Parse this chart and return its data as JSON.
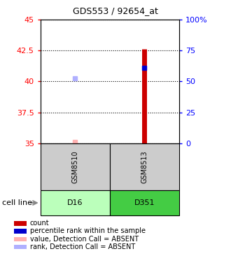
{
  "title": "GDS553 / 92654_at",
  "samples": [
    "GSM8510",
    "GSM8513"
  ],
  "cell_lines": [
    "D16",
    "D351"
  ],
  "ylim_left": [
    35,
    45
  ],
  "ylim_right": [
    0,
    100
  ],
  "yticks_left": [
    35,
    37.5,
    40,
    42.5,
    45
  ],
  "yticks_right": [
    0,
    25,
    50,
    75,
    100
  ],
  "count_color": "#cc0000",
  "rank_color": "#0000cc",
  "absent_value_color": "#ffb0b0",
  "absent_rank_color": "#b0b0ff",
  "bar_bottom": 35,
  "sample1_count": 35.1,
  "sample1_rank": 40.25,
  "sample2_count": 42.65,
  "sample2_rank": 41.1,
  "cell_line_colors": [
    "#bbffbb",
    "#44cc44"
  ],
  "sample_box_color": "#cccccc",
  "legend_items": [
    {
      "label": "count",
      "color": "#cc0000"
    },
    {
      "label": "percentile rank within the sample",
      "color": "#0000cc"
    },
    {
      "label": "value, Detection Call = ABSENT",
      "color": "#ffb0b0"
    },
    {
      "label": "rank, Detection Call = ABSENT",
      "color": "#b0b0ff"
    }
  ]
}
